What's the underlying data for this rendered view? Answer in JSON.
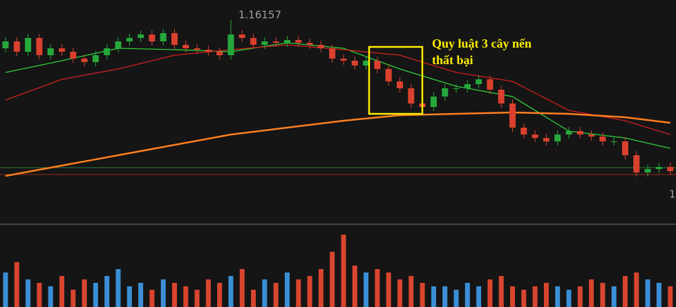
{
  "chart_data": {
    "type": "candlestick",
    "price_ylim": [
      1.147,
      1.163
    ],
    "up_color": "#26a83c",
    "down_color": "#d9412e",
    "candles": [
      [
        1.1595,
        1.1603,
        1.1592,
        1.16
      ],
      [
        1.16,
        1.1603,
        1.15895,
        1.15925
      ],
      [
        1.15925,
        1.16055,
        1.15895,
        1.16025
      ],
      [
        1.16025,
        1.16055,
        1.1587,
        1.159
      ],
      [
        1.159,
        1.1598,
        1.1587,
        1.1595
      ],
      [
        1.1595,
        1.1598,
        1.15895,
        1.15925
      ],
      [
        1.15925,
        1.15955,
        1.15845,
        1.15875
      ],
      [
        1.15875,
        1.15905,
        1.1582,
        1.1585
      ],
      [
        1.1585,
        1.1593,
        1.1582,
        1.159
      ],
      [
        1.159,
        1.1598,
        1.1587,
        1.1595
      ],
      [
        1.1595,
        1.1603,
        1.1592,
        1.16
      ],
      [
        1.16,
        1.16055,
        1.1597,
        1.16025
      ],
      [
        1.16025,
        1.1608,
        1.15995,
        1.1605
      ],
      [
        1.1605,
        1.1608,
        1.1597,
        1.16
      ],
      [
        1.16,
        1.1609,
        1.1597,
        1.1606
      ],
      [
        1.1606,
        1.1609,
        1.15945,
        1.15975
      ],
      [
        1.15975,
        1.16005,
        1.1592,
        1.1595
      ],
      [
        1.1595,
        1.1598,
        1.1591,
        1.1594
      ],
      [
        1.1594,
        1.1597,
        1.15895,
        1.15925
      ],
      [
        1.15925,
        1.15955,
        1.1587,
        1.159
      ],
      [
        1.159,
        1.16157,
        1.1587,
        1.1605
      ],
      [
        1.1605,
        1.1608,
        1.15995,
        1.16025
      ],
      [
        1.16025,
        1.16055,
        1.15945,
        1.15975
      ],
      [
        1.15975,
        1.1603,
        1.15945,
        1.16
      ],
      [
        1.16,
        1.1603,
        1.1596,
        1.1599
      ],
      [
        1.1599,
        1.1604,
        1.1596,
        1.1601
      ],
      [
        1.1601,
        1.1604,
        1.1596,
        1.1599
      ],
      [
        1.1599,
        1.1602,
        1.15945,
        1.15975
      ],
      [
        1.15975,
        1.16005,
        1.1592,
        1.1595
      ],
      [
        1.1595,
        1.1598,
        1.15845,
        1.15875
      ],
      [
        1.15875,
        1.15905,
        1.1583,
        1.1586
      ],
      [
        1.1586,
        1.1589,
        1.15795,
        1.15825
      ],
      [
        1.15825,
        1.1589,
        1.15795,
        1.1586
      ],
      [
        1.1586,
        1.1589,
        1.1577,
        1.158
      ],
      [
        1.158,
        1.1583,
        1.1568,
        1.1571
      ],
      [
        1.1571,
        1.1574,
        1.1563,
        1.1566
      ],
      [
        1.1566,
        1.1569,
        1.1552,
        1.1555
      ],
      [
        1.1555,
        1.1558,
        1.15495,
        1.15525
      ],
      [
        1.15525,
        1.1563,
        1.15495,
        1.156
      ],
      [
        1.156,
        1.1569,
        1.1557,
        1.1566
      ],
      [
        1.1566,
        1.1569,
        1.1563,
        1.1566
      ],
      [
        1.1566,
        1.1572,
        1.1563,
        1.1569
      ],
      [
        1.1569,
        1.15755,
        1.1566,
        1.15725
      ],
      [
        1.15725,
        1.15755,
        1.1562,
        1.1565
      ],
      [
        1.1565,
        1.1568,
        1.1552,
        1.1555
      ],
      [
        1.1555,
        1.1558,
        1.15345,
        1.15375
      ],
      [
        1.15375,
        1.15405,
        1.15295,
        1.15325
      ],
      [
        1.15325,
        1.15355,
        1.1527,
        1.153
      ],
      [
        1.153,
        1.1533,
        1.15245,
        1.15275
      ],
      [
        1.15275,
        1.15355,
        1.15245,
        1.15325
      ],
      [
        1.15325,
        1.1538,
        1.15295,
        1.1535
      ],
      [
        1.1535,
        1.1538,
        1.15295,
        1.15325
      ],
      [
        1.15325,
        1.15355,
        1.1528,
        1.1531
      ],
      [
        1.1531,
        1.1534,
        1.15245,
        1.15275
      ],
      [
        1.15275,
        1.15305,
        1.15245,
        1.15275
      ],
      [
        1.15275,
        1.15305,
        1.15145,
        1.15175
      ],
      [
        1.15175,
        1.15205,
        1.1502,
        1.1505
      ],
      [
        1.1505,
        1.15105,
        1.1502,
        1.15075
      ],
      [
        1.15075,
        1.1512,
        1.15045,
        1.1509
      ],
      [
        1.1509,
        1.1512,
        1.1503,
        1.1506
      ]
    ],
    "ma_index": [
      0,
      5,
      10,
      15,
      20,
      25,
      30,
      35,
      40,
      45,
      50,
      55,
      59
    ],
    "lines": [
      {
        "color": "#2fd13a",
        "values": [
          1.15775,
          1.1586,
          1.1595,
          1.1594,
          1.15925,
          1.1599,
          1.1595,
          1.158,
          1.15675,
          1.156,
          1.1535,
          1.153,
          1.15225
        ]
      },
      {
        "color": "#d21f1f",
        "values": [
          1.15575,
          1.15725,
          1.158,
          1.159,
          1.1594,
          1.15975,
          1.1594,
          1.159,
          1.15775,
          1.1571,
          1.155,
          1.15425,
          1.15325
        ]
      },
      {
        "color": "#ff7f1e",
        "values": [
          1.15025,
          1.151,
          1.15175,
          1.1525,
          1.15325,
          1.15375,
          1.15425,
          1.15465,
          1.15475,
          1.15485,
          1.15475,
          1.1545,
          1.1541
        ]
      }
    ],
    "levels": [
      {
        "value": 1.15085,
        "color": "#2f7d3a"
      },
      {
        "value": 1.15035,
        "color": "#9c2a22"
      }
    ],
    "volume_ylim": [
      0,
      110
    ],
    "volume_up_color": "#3a8fd6",
    "volume_down_color": "#d9452e",
    "volumes": [
      50,
      65,
      40,
      35,
      30,
      45,
      25,
      40,
      35,
      45,
      55,
      30,
      35,
      25,
      40,
      35,
      30,
      25,
      40,
      35,
      45,
      55,
      25,
      40,
      35,
      50,
      40,
      45,
      55,
      80,
      105,
      60,
      50,
      55,
      50,
      40,
      45,
      35,
      30,
      30,
      25,
      35,
      30,
      40,
      45,
      30,
      25,
      30,
      35,
      30,
      25,
      30,
      40,
      35,
      30,
      45,
      50,
      40,
      35,
      30
    ],
    "high_label": "1.16157",
    "right_label": "1",
    "annotation": [
      "Quy luật 3 cây nến",
      "thất bại"
    ]
  }
}
